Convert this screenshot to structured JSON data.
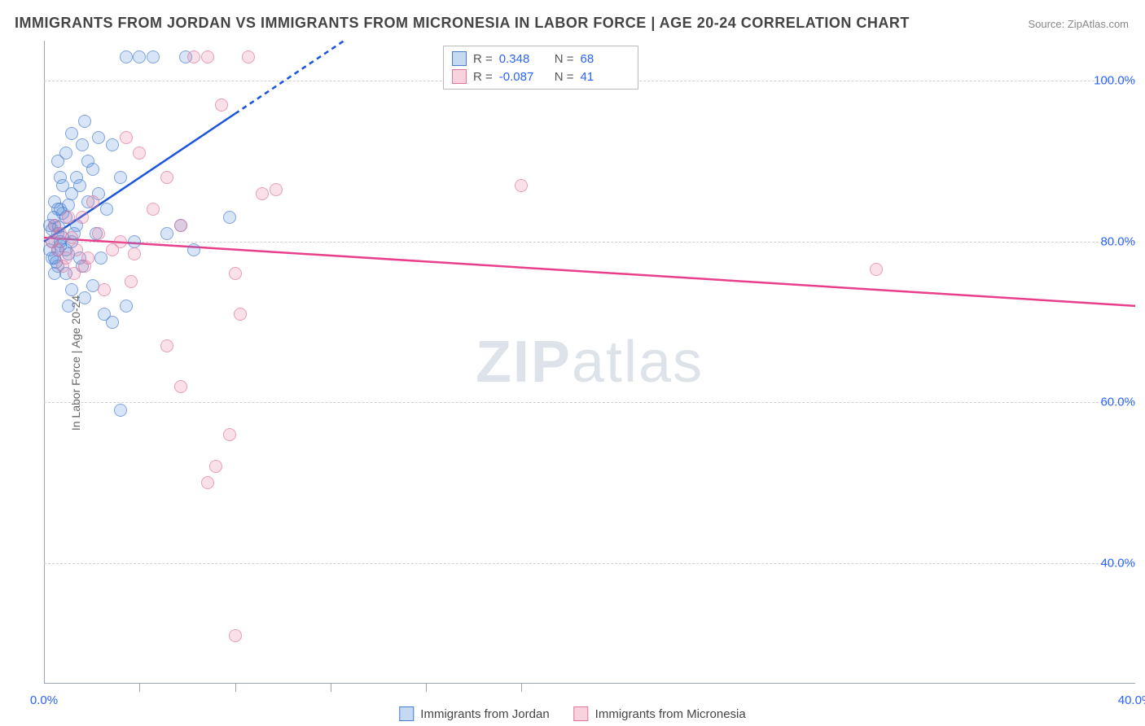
{
  "title": "IMMIGRANTS FROM JORDAN VS IMMIGRANTS FROM MICRONESIA IN LABOR FORCE | AGE 20-24 CORRELATION CHART",
  "source": "Source: ZipAtlas.com",
  "ylabel": "In Labor Force | Age 20-24",
  "watermark_a": "ZIP",
  "watermark_b": "atlas",
  "chart": {
    "type": "scatter",
    "xlim": [
      0,
      40
    ],
    "ylim": [
      25,
      105
    ],
    "xticks": [
      0,
      40
    ],
    "xtick_labels": [
      "0.0%",
      "40.0%"
    ],
    "xtick_minor": [
      3.5,
      7,
      10.5,
      14,
      17.5
    ],
    "yticks": [
      40,
      60,
      80,
      100
    ],
    "ytick_labels": [
      "40.0%",
      "60.0%",
      "80.0%",
      "100.0%"
    ],
    "series": [
      {
        "id": "jordan",
        "label": "Immigrants from Jordan",
        "marker_fill": "rgba(92,145,222,0.35)",
        "marker_stroke": "#4a7dd0",
        "trend_color": "#1a56db",
        "trend": {
          "x1": 0,
          "y1": 80,
          "x2": 11,
          "y2": 105,
          "dash_after_x": 7
        },
        "stats": {
          "R": "0.348",
          "N": "68"
        },
        "points": [
          [
            0.2,
            79
          ],
          [
            0.3,
            80
          ],
          [
            0.4,
            78
          ],
          [
            0.5,
            81
          ],
          [
            0.6,
            79.5
          ],
          [
            0.4,
            82
          ],
          [
            0.7,
            80.5
          ],
          [
            0.8,
            83
          ],
          [
            0.5,
            77
          ],
          [
            0.3,
            81.5
          ],
          [
            0.6,
            84
          ],
          [
            0.9,
            78.5
          ],
          [
            1.0,
            80
          ],
          [
            0.4,
            85
          ],
          [
            0.8,
            76
          ],
          [
            1.2,
            82
          ],
          [
            0.5,
            79
          ],
          [
            0.7,
            83.5
          ],
          [
            1.0,
            86
          ],
          [
            0.5,
            90
          ],
          [
            0.8,
            91
          ],
          [
            1.4,
            92
          ],
          [
            1.2,
            88
          ],
          [
            1.6,
            90
          ],
          [
            2.0,
            93
          ],
          [
            1.8,
            89
          ],
          [
            1.3,
            87
          ],
          [
            1.0,
            93.5
          ],
          [
            1.5,
            95
          ],
          [
            2.5,
            92
          ],
          [
            2.0,
            86
          ],
          [
            2.3,
            84
          ],
          [
            2.8,
            88
          ],
          [
            3.0,
            103
          ],
          [
            3.5,
            103
          ],
          [
            3.3,
            80
          ],
          [
            4.0,
            103
          ],
          [
            4.5,
            81
          ],
          [
            5.0,
            82
          ],
          [
            5.2,
            103
          ],
          [
            6.8,
            83
          ],
          [
            5.5,
            79
          ],
          [
            1.0,
            74
          ],
          [
            1.5,
            73
          ],
          [
            2.2,
            71
          ],
          [
            3.0,
            72
          ],
          [
            2.5,
            70
          ],
          [
            1.8,
            74.5
          ],
          [
            0.9,
            72
          ],
          [
            1.3,
            78
          ],
          [
            2.8,
            59
          ],
          [
            0.6,
            88
          ],
          [
            0.9,
            84.5
          ],
          [
            1.1,
            81
          ],
          [
            0.7,
            87
          ],
          [
            1.4,
            77
          ],
          [
            0.3,
            78
          ],
          [
            0.2,
            82
          ],
          [
            0.4,
            76
          ],
          [
            0.5,
            84
          ],
          [
            0.6,
            80
          ],
          [
            0.8,
            79
          ],
          [
            1.6,
            85
          ],
          [
            1.9,
            81
          ],
          [
            2.1,
            78
          ],
          [
            0.35,
            83
          ],
          [
            0.45,
            77.5
          ],
          [
            0.55,
            81.8
          ]
        ]
      },
      {
        "id": "micronesia",
        "label": "Immigrants from Micronesia",
        "marker_fill": "rgba(236,128,160,0.35)",
        "marker_stroke": "#e0749b",
        "trend_color": "#e83e8c",
        "trend": {
          "x1": 0,
          "y1": 80.5,
          "x2": 40,
          "y2": 72
        },
        "stats": {
          "R": "-0.087",
          "N": "41"
        },
        "points": [
          [
            0.3,
            80
          ],
          [
            0.5,
            79
          ],
          [
            0.6,
            81
          ],
          [
            0.8,
            78
          ],
          [
            1.0,
            80.5
          ],
          [
            0.4,
            82
          ],
          [
            0.7,
            77
          ],
          [
            1.2,
            79
          ],
          [
            1.4,
            83
          ],
          [
            1.8,
            85
          ],
          [
            2.0,
            81
          ],
          [
            2.5,
            79
          ],
          [
            3.0,
            93
          ],
          [
            3.5,
            91
          ],
          [
            4.0,
            84
          ],
          [
            4.5,
            88
          ],
          [
            5.0,
            82
          ],
          [
            5.5,
            103
          ],
          [
            6.0,
            103
          ],
          [
            6.5,
            97
          ],
          [
            7.0,
            76
          ],
          [
            7.5,
            103
          ],
          [
            8.0,
            86
          ],
          [
            8.5,
            86.5
          ],
          [
            7.2,
            71
          ],
          [
            6.0,
            50
          ],
          [
            6.3,
            52
          ],
          [
            6.8,
            56
          ],
          [
            7.0,
            31
          ],
          [
            4.5,
            67
          ],
          [
            5.0,
            62
          ],
          [
            3.2,
            75
          ],
          [
            17.5,
            87
          ],
          [
            30.5,
            76.5
          ],
          [
            1.5,
            77
          ],
          [
            2.2,
            74
          ],
          [
            0.9,
            83
          ],
          [
            1.1,
            76
          ],
          [
            1.6,
            78
          ],
          [
            2.8,
            80
          ],
          [
            3.3,
            78.5
          ]
        ]
      }
    ],
    "legend_labels": [
      "Immigrants from Jordan",
      "Immigrants from Micronesia"
    ],
    "background_color": "#ffffff",
    "grid_color": "#d0d0d0",
    "label_color_axis": "#2962ff",
    "title_color": "#444444",
    "marker_radius": 8
  }
}
